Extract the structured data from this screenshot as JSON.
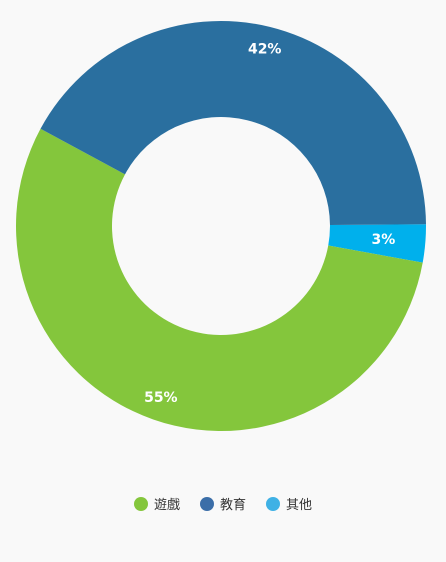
{
  "chart_data": {
    "type": "pie",
    "donut": true,
    "categories": [
      "遊戲",
      "教育",
      "其他"
    ],
    "values": [
      55,
      42,
      3
    ],
    "slice_labels": [
      "55%",
      "42%",
      "3%"
    ],
    "colors": [
      "#84c63c",
      "#2a6f9f",
      "#00b0ec"
    ],
    "legend_colors": [
      "#84c63c",
      "#3b6ea8",
      "#3fb1e5"
    ],
    "legend_placement": "bottom-center"
  }
}
